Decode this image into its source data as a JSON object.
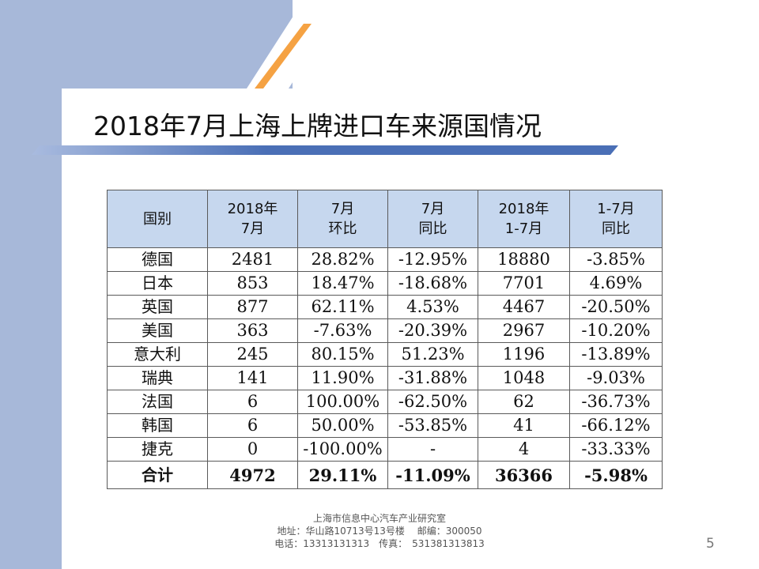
{
  "title": "2018年7月上海上牌进口车来源国情况",
  "table": {
    "headers": [
      [
        "国别"
      ],
      [
        "2018年",
        "7月"
      ],
      [
        "7月",
        "环比"
      ],
      [
        "7月",
        "同比"
      ],
      [
        "2018年",
        "1-7月"
      ],
      [
        "1-7月",
        "同比"
      ]
    ],
    "rows": [
      [
        "德国",
        "2481",
        "28.82%",
        "-12.95%",
        "18880",
        "-3.85%"
      ],
      [
        "日本",
        "853",
        "18.47%",
        "-18.68%",
        "7701",
        "4.69%"
      ],
      [
        "英国",
        "877",
        "62.11%",
        "4.53%",
        "4467",
        "-20.50%"
      ],
      [
        "美国",
        "363",
        "-7.63%",
        "-20.39%",
        "2967",
        "-10.20%"
      ],
      [
        "意大利",
        "245",
        "80.15%",
        "51.23%",
        "1196",
        "-13.89%"
      ],
      [
        "瑞典",
        "141",
        "11.90%",
        "-31.88%",
        "1048",
        "-9.03%"
      ],
      [
        "法国",
        "6",
        "100.00%",
        "-62.50%",
        "62",
        "-36.73%"
      ],
      [
        "韩国",
        "6",
        "50.00%",
        "-53.85%",
        "41",
        "-66.12%"
      ],
      [
        "捷克",
        "0",
        "-100.00%",
        "-",
        "4",
        "-33.33%"
      ]
    ],
    "total": [
      "合计",
      "4972",
      "29.11%",
      "-11.09%",
      "36366",
      "-5.98%"
    ]
  },
  "footer": {
    "line1": "上海市信息中心汽车产业研究室",
    "line2": "地址：华山路10713号13号楼　 邮编：300050",
    "line3": "电话：13313131313　传真：　531381313813"
  },
  "page_number": "5",
  "colors": {
    "band": "#a7b8d9",
    "header_fill": "#c6d7ee",
    "accent_orange": "#f5a243",
    "title_bar": "#4a6fb6"
  }
}
